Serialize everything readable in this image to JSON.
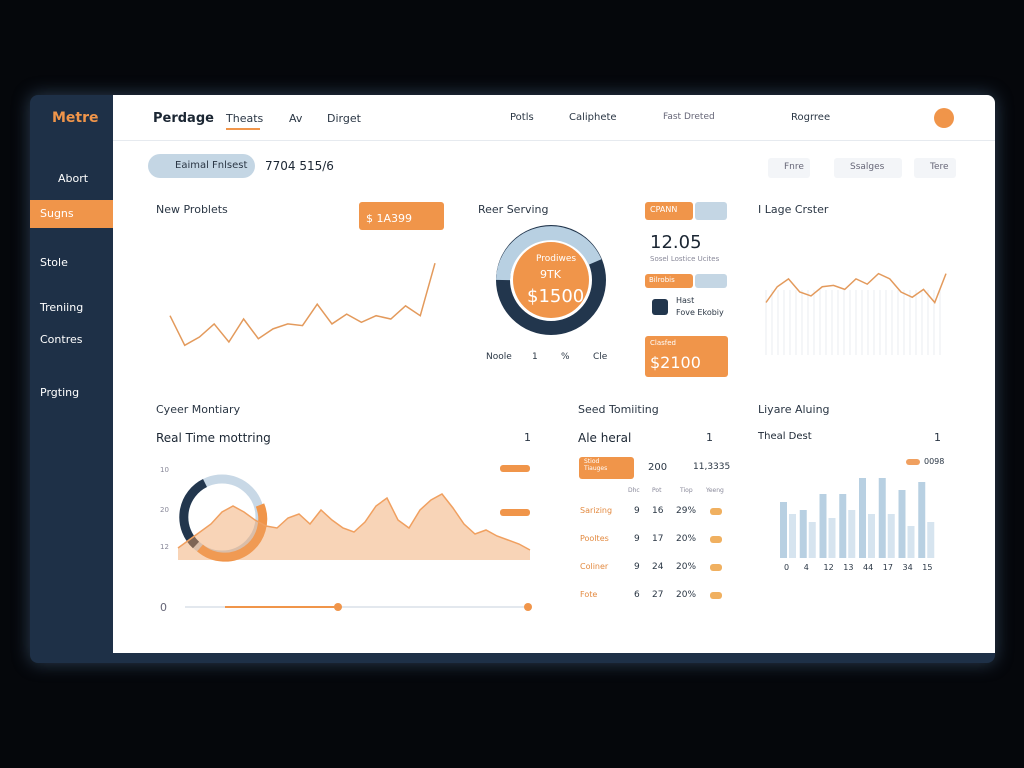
{
  "sidebar": {
    "brand": "Metre",
    "items": [
      "Abort",
      "Sugns",
      "Stole",
      "Treniing",
      "Contres",
      "Prgting"
    ]
  },
  "topbar": {
    "title": "Perdage",
    "tabs": [
      "Theats",
      "Av",
      "Dirget"
    ],
    "menus": [
      "Potls",
      "Caliphete"
    ],
    "status": "Fast Dreted",
    "profile": "Rogrree"
  },
  "header": {
    "user": "Eaimal Fnlsest",
    "code": "7704 515/6",
    "buttons": [
      "Fnre",
      "Ssalges",
      "Tere"
    ]
  },
  "cards": {
    "new_products": {
      "title": "New Problets",
      "badge": "$ 1A399",
      "chart": {
        "type": "line",
        "color": "#e39a5c",
        "ylim": [
          0,
          70
        ],
        "values": [
          30,
          12,
          17,
          25,
          14,
          28,
          16,
          22,
          25,
          24,
          37,
          25,
          31,
          26,
          30,
          28,
          36,
          30,
          62
        ]
      }
    },
    "revenue": {
      "title": "Reer Serving",
      "donut_label": "Prodiwes",
      "donut_sub": "9TK",
      "donut_value": "$1500",
      "legend": [
        "Noole",
        "1",
        "%",
        "Cle"
      ]
    },
    "stats": {
      "badge_1": "CPANN",
      "value_1": "12.05",
      "caption_1": "Sosel Lostice Ucites",
      "badge_2": "Bilrobis",
      "name": "Hast",
      "role": "Fove Ekobiy",
      "badge_3": "Clasfed",
      "value_3": "$2100"
    },
    "image_cluster": {
      "title": "I Lage Crster",
      "chart": {
        "type": "line",
        "color": "#e39a5c",
        "ylim": [
          0,
          80
        ],
        "values": [
          40,
          52,
          58,
          48,
          45,
          52,
          53,
          50,
          58,
          54,
          62,
          58,
          48,
          44,
          50,
          40,
          62
        ]
      }
    },
    "monitoring": {
      "title": "Cyeer Montiary",
      "subtitle": "Real Time mottring",
      "dropdown": "1",
      "axis_labels": [
        "10",
        "20",
        "12"
      ],
      "slider": "0",
      "chart": {
        "type": "area",
        "color": "#f0a060",
        "ylim": [
          0,
          40
        ],
        "values": [
          6,
          10,
          14,
          18,
          24,
          27,
          24,
          20,
          17,
          16,
          21,
          23,
          18,
          25,
          20,
          16,
          14,
          19,
          27,
          31,
          20,
          16,
          25,
          30,
          33,
          26,
          18,
          13,
          15,
          12,
          10,
          8,
          5
        ]
      }
    },
    "tracking": {
      "title": "Seed Tomiiting",
      "subtitle": "Ale heral",
      "dropdown": "1",
      "summary": [
        "Stiod Tiauges",
        "200",
        "11,3335"
      ],
      "columns": [
        "Dhc",
        "Pot",
        "Tiop",
        "Yeeng"
      ],
      "rows": [
        [
          "Sarizing",
          "9",
          "16",
          "29%"
        ],
        [
          "Pooltes",
          "9",
          "17",
          "20%"
        ],
        [
          "Coliner",
          "9",
          "24",
          "20%"
        ],
        [
          "Fote",
          "6",
          "27",
          "20%"
        ]
      ]
    },
    "living": {
      "title": "Liyare Aluing",
      "subtitle": "Theal Dest",
      "dropdown": "1",
      "chart": {
        "type": "bar",
        "ylim": [
          0,
          25
        ],
        "categories": [
          "0",
          "4",
          "12",
          "13",
          "44",
          "17",
          "34",
          "15"
        ],
        "series": [
          {
            "name": "0098",
            "color": "#b8d0e2",
            "values": [
              14,
              12,
              16,
              16,
              20,
              20,
              17,
              19
            ]
          },
          {
            "color": "#d6e4ef",
            "values": [
              11,
              9,
              10,
              12,
              11,
              11,
              8,
              9
            ]
          }
        ]
      }
    }
  }
}
